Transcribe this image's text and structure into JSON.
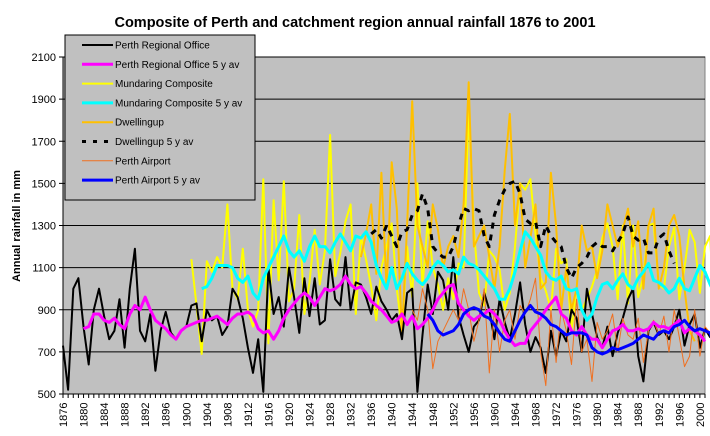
{
  "chart_data": {
    "type": "line",
    "title": "Composite of Perth and catchment region annual rainfall 1876 to 2001",
    "xlabel": "",
    "ylabel": "Annual rainfall in mm",
    "ylim": [
      500,
      2100
    ],
    "yticks": [
      500,
      700,
      900,
      1100,
      1300,
      1500,
      1700,
      1900,
      2100
    ],
    "xlim": [
      1876,
      2001
    ],
    "xticks": [
      1876,
      1880,
      1884,
      1888,
      1892,
      1896,
      1900,
      1904,
      1908,
      1912,
      1916,
      1920,
      1924,
      1928,
      1932,
      1936,
      1940,
      1944,
      1948,
      1952,
      1956,
      1960,
      1964,
      1968,
      1972,
      1976,
      1980,
      1984,
      1988,
      1992,
      1996,
      2000
    ],
    "grid": true,
    "legend_position": "top-left",
    "background": "#c0c0c0",
    "series": [
      {
        "name": "Perth Regional Office",
        "color": "#000000",
        "width": 2,
        "dash": "",
        "start": 1876,
        "values": [
          730,
          520,
          1000,
          1050,
          820,
          640,
          900,
          1000,
          870,
          760,
          800,
          950,
          720,
          1000,
          1190,
          800,
          750,
          880,
          610,
          800,
          890,
          790,
          760,
          800,
          820,
          920,
          930,
          750,
          900,
          850,
          870,
          780,
          820,
          1000,
          960,
          860,
          720,
          600,
          760,
          510,
          1100,
          880,
          960,
          820,
          1100,
          960,
          790,
          1050,
          870,
          1050,
          830,
          850,
          1140,
          950,
          920,
          1150,
          900,
          1030,
          1020,
          960,
          880,
          1010,
          940,
          900,
          850,
          880,
          760,
          980,
          1000,
          510,
          780,
          1020,
          880,
          1080,
          1040,
          900,
          1150,
          870,
          780,
          700,
          820,
          850,
          980,
          900,
          760,
          950,
          840,
          760,
          880,
          1030,
          830,
          700,
          770,
          720,
          600,
          800,
          680,
          800,
          750,
          900,
          860,
          700,
          1000,
          880,
          770,
          720,
          820,
          680,
          790,
          860,
          950,
          1000,
          680,
          560,
          800,
          840,
          780,
          800,
          760,
          820,
          900,
          730,
          830,
          880,
          720,
          810,
          770,
          760
        ]
      },
      {
        "name": "Perth Regional Office 5 y av",
        "color": "#ff00ff",
        "width": 3,
        "dash": "",
        "start": 1880,
        "values": [
          810,
          820,
          880,
          880,
          850,
          840,
          860,
          830,
          810,
          880,
          920,
          900,
          960,
          900,
          850,
          830,
          810,
          780,
          760,
          800,
          820,
          830,
          840,
          850,
          850,
          860,
          870,
          850,
          830,
          860,
          880,
          880,
          890,
          870,
          810,
          790,
          800,
          760,
          800,
          860,
          900,
          930,
          960,
          980,
          960,
          920,
          960,
          1000,
          990,
          1000,
          1020,
          1060,
          1020,
          1000,
          1010,
          980,
          940,
          920,
          900,
          870,
          840,
          850,
          880,
          830,
          870,
          810,
          830,
          860,
          900,
          950,
          980,
          1010,
          1020,
          930,
          900,
          870,
          850,
          870,
          880,
          900,
          880,
          850,
          800,
          760,
          730,
          740,
          740,
          800,
          830,
          860,
          900,
          930,
          960,
          880,
          860,
          800,
          780,
          820,
          780,
          760,
          760,
          720,
          760,
          800,
          810,
          830,
          800,
          800,
          810,
          800,
          810,
          840,
          820,
          820,
          810,
          830,
          850,
          790,
          810,
          800,
          780,
          750
        ]
      },
      {
        "name": "Mundaring Composite",
        "color": "#ffff00",
        "width": 2,
        "dash": "",
        "start": 1901,
        "values": [
          1140,
          920,
          690,
          1130,
          1080,
          1150,
          1100,
          1400,
          1000,
          950,
          1190,
          900,
          820,
          900,
          1520,
          740,
          1420,
          1040,
          1510,
          940,
          1000,
          1350,
          880,
          1030,
          1280,
          1020,
          1180,
          1730,
          1060,
          1170,
          1320,
          1400,
          880,
          1250,
          1140,
          1010,
          850,
          1100,
          1200,
          1310,
          1000,
          800,
          1200,
          960,
          1500,
          1010,
          1320,
          1100,
          1020,
          900,
          1050,
          950,
          1120,
          1100,
          1860,
          1280,
          980,
          920,
          1180,
          1150,
          1090,
          900,
          980,
          1200,
          1500,
          1470,
          1520,
          1260,
          1050,
          990,
          900,
          1190,
          1120,
          1140,
          800,
          1000,
          900,
          950,
          1010,
          1090,
          1240,
          1310,
          1200,
          950,
          1300,
          930,
          1300,
          960,
          1060,
          1300,
          1310,
          1020,
          1000,
          1200,
          1290,
          950,
          1100,
          1280,
          1220,
          980,
          1200,
          1250,
          790
        ]
      },
      {
        "name": "Mundaring Composite 5 y av",
        "color": "#00ffff",
        "width": 3,
        "dash": "",
        "start": 1903,
        "values": [
          1000,
          1010,
          1050,
          1110,
          1110,
          1110,
          1100,
          1050,
          1030,
          1060,
          980,
          950,
          1050,
          1100,
          1150,
          1200,
          1250,
          1180,
          1150,
          1180,
          1130,
          1200,
          1250,
          1200,
          1200,
          1170,
          1220,
          1260,
          1220,
          1180,
          1250,
          1240,
          1270,
          1220,
          1110,
          1050,
          1000,
          1100,
          1000,
          1050,
          1120,
          1070,
          1040,
          1020,
          1050,
          1100,
          1130,
          1110,
          1080,
          1090,
          1070,
          1150,
          1120,
          1110,
          1090,
          1060,
          1030,
          1000,
          950,
          950,
          1000,
          1080,
          1180,
          1270,
          1240,
          1200,
          1160,
          1080,
          1050,
          1040,
          1060,
          1000,
          990,
          1000,
          900,
          850,
          880,
          960,
          1020,
          1030,
          1000,
          1040,
          1070,
          1020,
          1000,
          1050,
          1080,
          1120,
          1040,
          1030,
          1010,
          980,
          1000,
          1050,
          1000,
          990,
          1050,
          1110,
          1080,
          1020,
          970
        ]
      },
      {
        "name": "Dwellingup",
        "color": "#ffc000",
        "width": 2,
        "dash": "",
        "start": 1934,
        "values": [
          1150,
          1260,
          1400,
          1070,
          1550,
          1000,
          1600,
          1380,
          780,
          1300,
          1890,
          1300,
          1200,
          1100,
          1400,
          1280,
          1100,
          1200,
          1250,
          1150,
          1400,
          1980,
          1200,
          1250,
          1300,
          1150,
          1000,
          1200,
          1560,
          1830,
          1300,
          1500,
          1100,
          1240,
          1400,
          1000,
          1030,
          1550,
          1300,
          900,
          1100,
          900,
          1000,
          1300,
          1180,
          1200,
          1050,
          1180,
          1400,
          1300,
          1200,
          1280,
          1380,
          1200,
          1320,
          1000,
          1300,
          1380,
          1000,
          1100,
          1300,
          1350,
          1250,
          1000,
          800,
          750
        ]
      },
      {
        "name": "Dwellingup 5 y av",
        "color": "#000000",
        "width": 3,
        "dash": "6,6",
        "start": 1936,
        "values": [
          1260,
          1280,
          1240,
          1300,
          1250,
          1200,
          1270,
          1280,
          1350,
          1370,
          1450,
          1380,
          1200,
          1170,
          1150,
          1150,
          1200,
          1300,
          1380,
          1370,
          1380,
          1370,
          1250,
          1200,
          1350,
          1420,
          1470,
          1500,
          1510,
          1450,
          1330,
          1310,
          1320,
          1200,
          1300,
          1250,
          1220,
          1200,
          1100,
          1050,
          1100,
          1120,
          1150,
          1200,
          1220,
          1200,
          1200,
          1180,
          1220,
          1260,
          1340,
          1250,
          1230,
          1240,
          1170,
          1170,
          1240,
          1260,
          1180,
          1120
        ]
      },
      {
        "name": "Perth Airport",
        "color": "#f07020",
        "width": 1,
        "dash": "",
        "start": 1944,
        "values": [
          900,
          850,
          1000,
          900,
          620,
          750,
          800,
          850,
          900,
          850,
          1000,
          900,
          750,
          850,
          1000,
          600,
          900,
          700,
          850,
          900,
          760,
          920,
          880,
          950,
          1050,
          700,
          540,
          900,
          650,
          900,
          800,
          640,
          950,
          700,
          760,
          560,
          840,
          760,
          800,
          880,
          700,
          860,
          780,
          760,
          860,
          650,
          800,
          850,
          780,
          870,
          700,
          900,
          770,
          630,
          680,
          900,
          680,
          820,
          790,
          750,
          640,
          620
        ]
      },
      {
        "name": "Perth Airport 5 y av",
        "color": "#0000ff",
        "width": 3,
        "dash": "",
        "start": 1947,
        "values": [
          880,
          850,
          800,
          780,
          790,
          800,
          830,
          880,
          900,
          910,
          900,
          870,
          860,
          830,
          790,
          760,
          750,
          800,
          850,
          890,
          920,
          890,
          880,
          860,
          830,
          820,
          800,
          780,
          790,
          790,
          790,
          780,
          720,
          700,
          690,
          700,
          720,
          710,
          720,
          730,
          740,
          760,
          780,
          770,
          760,
          790,
          800,
          790,
          820,
          830,
          850,
          820,
          800,
          810,
          800,
          790,
          720,
          720,
          760,
          760,
          740,
          700
        ]
      }
    ]
  }
}
